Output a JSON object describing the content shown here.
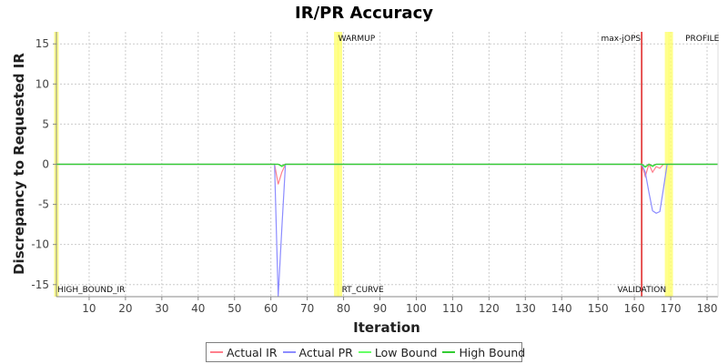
{
  "chart_data": {
    "type": "line",
    "title": "IR/PR Accuracy",
    "xlabel": "Iteration",
    "ylabel": "Discrepancy to Requested IR",
    "xlim": [
      1,
      183
    ],
    "ylim": [
      -16.5,
      16.5
    ],
    "x_ticks": [
      10,
      20,
      30,
      40,
      50,
      60,
      70,
      80,
      90,
      100,
      110,
      120,
      130,
      140,
      150,
      160,
      170,
      180
    ],
    "y_ticks": [
      -15,
      -10,
      -5,
      0,
      5,
      10,
      15
    ],
    "grid": true,
    "legend_position": "bottom",
    "series": [
      {
        "name": "Actual IR",
        "color": "#ff7f8c",
        "points": [
          [
            1,
            0
          ],
          [
            60,
            0
          ],
          [
            61,
            0
          ],
          [
            62,
            -2.5
          ],
          [
            63,
            -1
          ],
          [
            64,
            0
          ],
          [
            75,
            0
          ],
          [
            162,
            0
          ],
          [
            163,
            -1.5
          ],
          [
            164,
            0
          ],
          [
            165,
            -1
          ],
          [
            166,
            -0.3
          ],
          [
            167,
            -0.5
          ],
          [
            168,
            0
          ],
          [
            169,
            0
          ],
          [
            183,
            0
          ]
        ]
      },
      {
        "name": "Actual PR",
        "color": "#8c8cff",
        "points": [
          [
            1,
            0
          ],
          [
            61,
            0
          ],
          [
            62,
            -16.5
          ],
          [
            63,
            -8
          ],
          [
            64,
            0
          ],
          [
            75,
            0
          ],
          [
            162,
            0
          ],
          [
            163,
            -1
          ],
          [
            164,
            -3.5
          ],
          [
            165,
            -5.8
          ],
          [
            166,
            -6.1
          ],
          [
            167,
            -5.9
          ],
          [
            168,
            -3
          ],
          [
            169,
            0
          ],
          [
            183,
            0
          ]
        ]
      },
      {
        "name": "Low Bound",
        "color": "#66ff66",
        "points": [
          [
            1,
            0
          ],
          [
            62,
            0
          ],
          [
            63,
            -0.3
          ],
          [
            64,
            0
          ],
          [
            75,
            0
          ],
          [
            162,
            0
          ],
          [
            163,
            -0.4
          ],
          [
            164,
            0
          ],
          [
            165,
            -0.3
          ],
          [
            166,
            0
          ],
          [
            183,
            0
          ]
        ]
      },
      {
        "name": "High Bound",
        "color": "#33cc33",
        "points": [
          [
            1,
            0
          ],
          [
            62,
            0
          ],
          [
            63,
            -0.2
          ],
          [
            64,
            0
          ],
          [
            75,
            0
          ],
          [
            162,
            0
          ],
          [
            163,
            -0.3
          ],
          [
            164,
            0
          ],
          [
            165,
            -0.2
          ],
          [
            166,
            0
          ],
          [
            183,
            0
          ]
        ]
      }
    ],
    "markers": [
      {
        "label": "HIGH_BOUND_IR",
        "x": 1,
        "color": "#ffff66",
        "label_pos": "bottom"
      },
      {
        "label": "WARMUP",
        "x": 78,
        "color": "#ffff66",
        "label_pos": "top"
      },
      {
        "label": "RT_CURVE",
        "x": 79,
        "color": "#ffff66",
        "label_pos": "bottom"
      },
      {
        "label": "max-jOPS",
        "x": 162,
        "color": "#dd1111",
        "label_pos": "top"
      },
      {
        "label": "VALIDATION",
        "x": 169,
        "color": "#ffff66",
        "label_pos": "bottom"
      },
      {
        "label": "PROFILE",
        "x": 170,
        "color": "#ffff66",
        "label_pos": "top"
      }
    ]
  }
}
